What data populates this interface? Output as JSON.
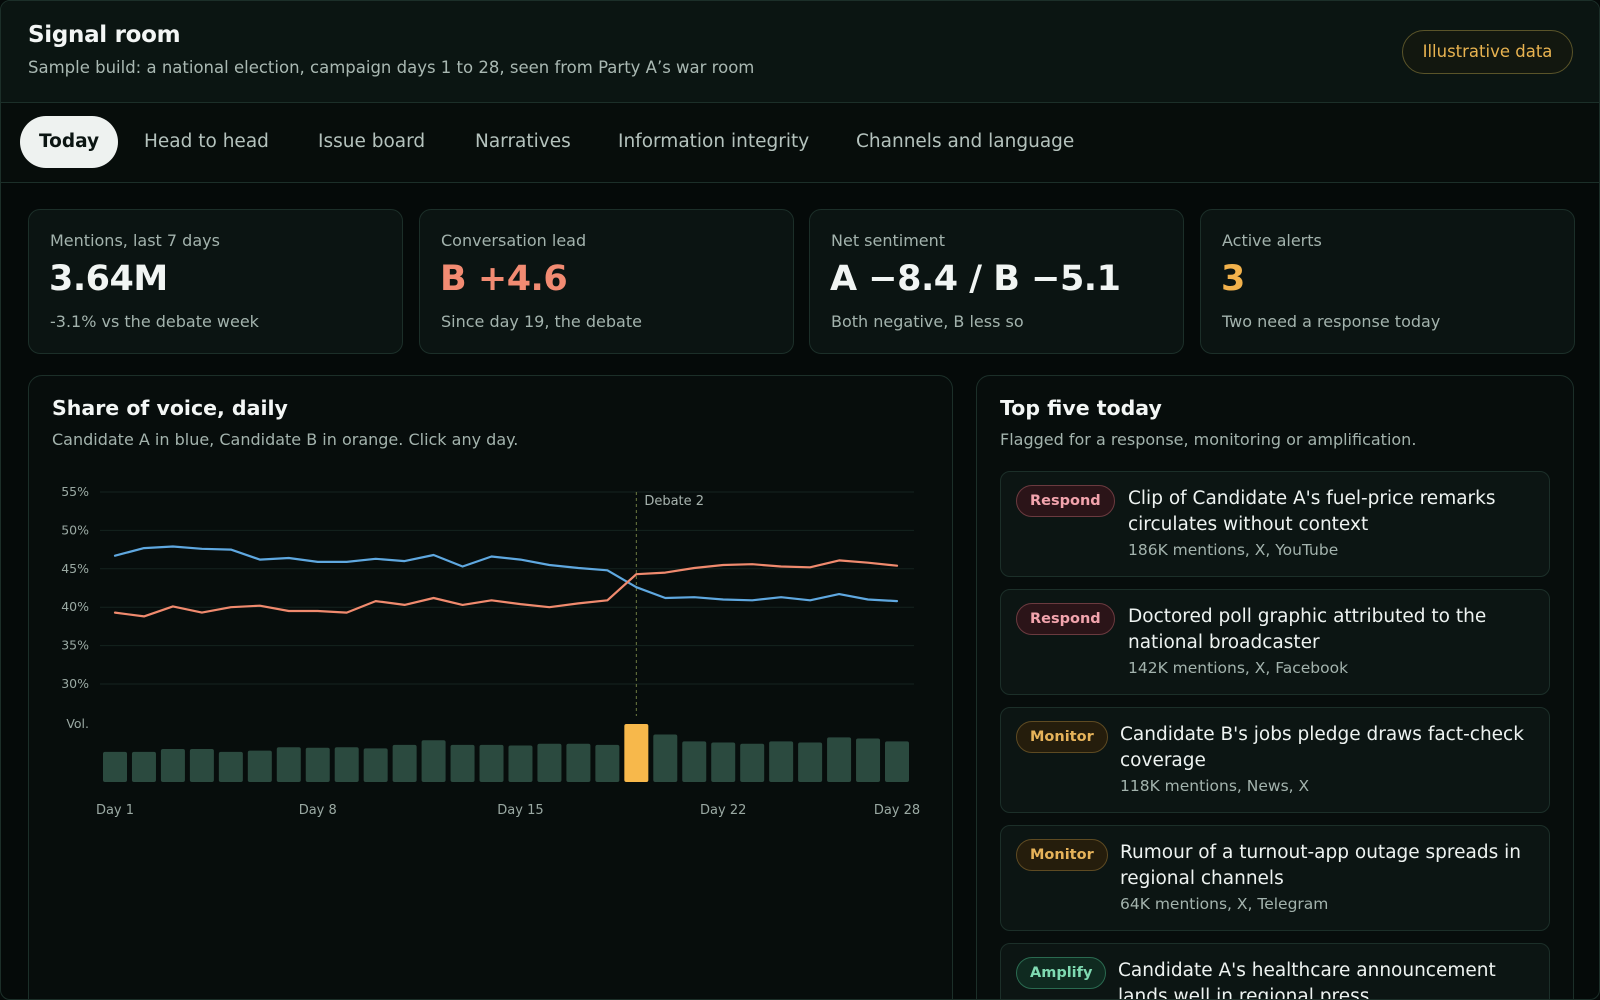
{
  "header": {
    "title": "Signal room",
    "subtitle": "Sample build: a national election, campaign days 1 to 28, seen from Party A’s war room",
    "badge": "Illustrative data"
  },
  "tabs": [
    {
      "label": "Today"
    },
    {
      "label": "Head to head"
    },
    {
      "label": "Issue board"
    },
    {
      "label": "Narratives"
    },
    {
      "label": "Information integrity"
    },
    {
      "label": "Channels and language"
    }
  ],
  "kpis": [
    {
      "label": "Mentions, last 7 days",
      "value": "3.64M",
      "note": "-3.1% vs the debate week",
      "color": "#f1f5f3"
    },
    {
      "label": "Conversation lead",
      "value": "B +4.6",
      "note": "Since day 19, the debate",
      "color": "#f28b72"
    },
    {
      "label": "Net sentiment",
      "value": "A −8.4 / B −5.1",
      "note": "Both negative, B less so",
      "color": "#f1f5f3"
    },
    {
      "label": "Active alerts",
      "value": "3",
      "note": "Two need a response today",
      "color": "#f2b24c"
    }
  ],
  "sov_panel": {
    "title": "Share of voice, daily",
    "subtitle": "Candidate A in blue, Candidate B in orange. Click any day."
  },
  "chart_data": {
    "type": "line",
    "title": "Share of voice, daily",
    "subtitle": "Candidate A in blue, Candidate B in orange. Click any day.",
    "x": [
      1,
      2,
      3,
      4,
      5,
      6,
      7,
      8,
      9,
      10,
      11,
      12,
      13,
      14,
      15,
      16,
      17,
      18,
      19,
      20,
      21,
      22,
      23,
      24,
      25,
      26,
      27,
      28
    ],
    "x_tick_labels": [
      "Day 1",
      "Day 8",
      "Day 15",
      "Day 22",
      "Day 28"
    ],
    "x_tick_values": [
      1,
      8,
      15,
      22,
      28
    ],
    "y_ticks": [
      "55%",
      "50%",
      "45%",
      "40%",
      "35%",
      "30%"
    ],
    "y_tick_values": [
      55,
      50,
      45,
      40,
      35,
      30
    ],
    "ylim": [
      28,
      55
    ],
    "series": [
      {
        "color": "#5fa8e0",
        "values": [
          46.7,
          47.7,
          47.9,
          47.6,
          47.5,
          46.2,
          46.4,
          45.9,
          45.9,
          46.3,
          46.0,
          46.8,
          45.3,
          46.6,
          46.2,
          45.5,
          45.1,
          44.8,
          42.6,
          41.2,
          41.3,
          41.0,
          40.9,
          41.3,
          40.9,
          41.7,
          41.0,
          40.8
        ]
      },
      {
        "color": "#f08a6e",
        "values": [
          39.3,
          38.8,
          40.1,
          39.3,
          40.0,
          40.2,
          39.5,
          39.5,
          39.3,
          40.8,
          40.3,
          41.2,
          40.3,
          40.9,
          40.4,
          40.0,
          40.5,
          40.9,
          44.3,
          44.5,
          45.1,
          45.5,
          45.6,
          45.3,
          45.2,
          46.1,
          45.8,
          45.4
        ]
      }
    ],
    "volume_label": "Vol.",
    "volume": [
      0.52,
      0.52,
      0.57,
      0.57,
      0.52,
      0.54,
      0.6,
      0.59,
      0.6,
      0.58,
      0.64,
      0.72,
      0.64,
      0.64,
      0.63,
      0.66,
      0.66,
      0.64,
      1.0,
      0.82,
      0.7,
      0.68,
      0.66,
      0.7,
      0.68,
      0.77,
      0.75,
      0.7
    ],
    "highlight_day": 19,
    "annotation": {
      "day": 19,
      "label": "Debate 2"
    },
    "grid": true,
    "colors": {
      "volume": "#2b4a3f",
      "highlight": "#f7b84b",
      "annotation_line": "#6e7a42"
    }
  },
  "top_panel": {
    "title": "Top five today",
    "subtitle": "Flagged for a response, monitoring or amplification.",
    "items": [
      {
        "tag": "Respond",
        "kind": "respond",
        "title": "Clip of Candidate A's fuel-price remarks circulates without context",
        "meta": "186K mentions, X, YouTube"
      },
      {
        "tag": "Respond",
        "kind": "respond",
        "title": "Doctored poll graphic attributed to the national broadcaster",
        "meta": "142K mentions, X, Facebook"
      },
      {
        "tag": "Monitor",
        "kind": "monitor",
        "title": "Candidate B's jobs pledge draws fact-check coverage",
        "meta": "118K mentions, News, X"
      },
      {
        "tag": "Monitor",
        "kind": "monitor",
        "title": "Rumour of a turnout-app outage spreads in regional channels",
        "meta": "64K mentions, X, Telegram"
      },
      {
        "tag": "Amplify",
        "kind": "amplify",
        "title": "Candidate A's healthcare announcement lands well in regional press",
        "meta": ""
      }
    ]
  }
}
